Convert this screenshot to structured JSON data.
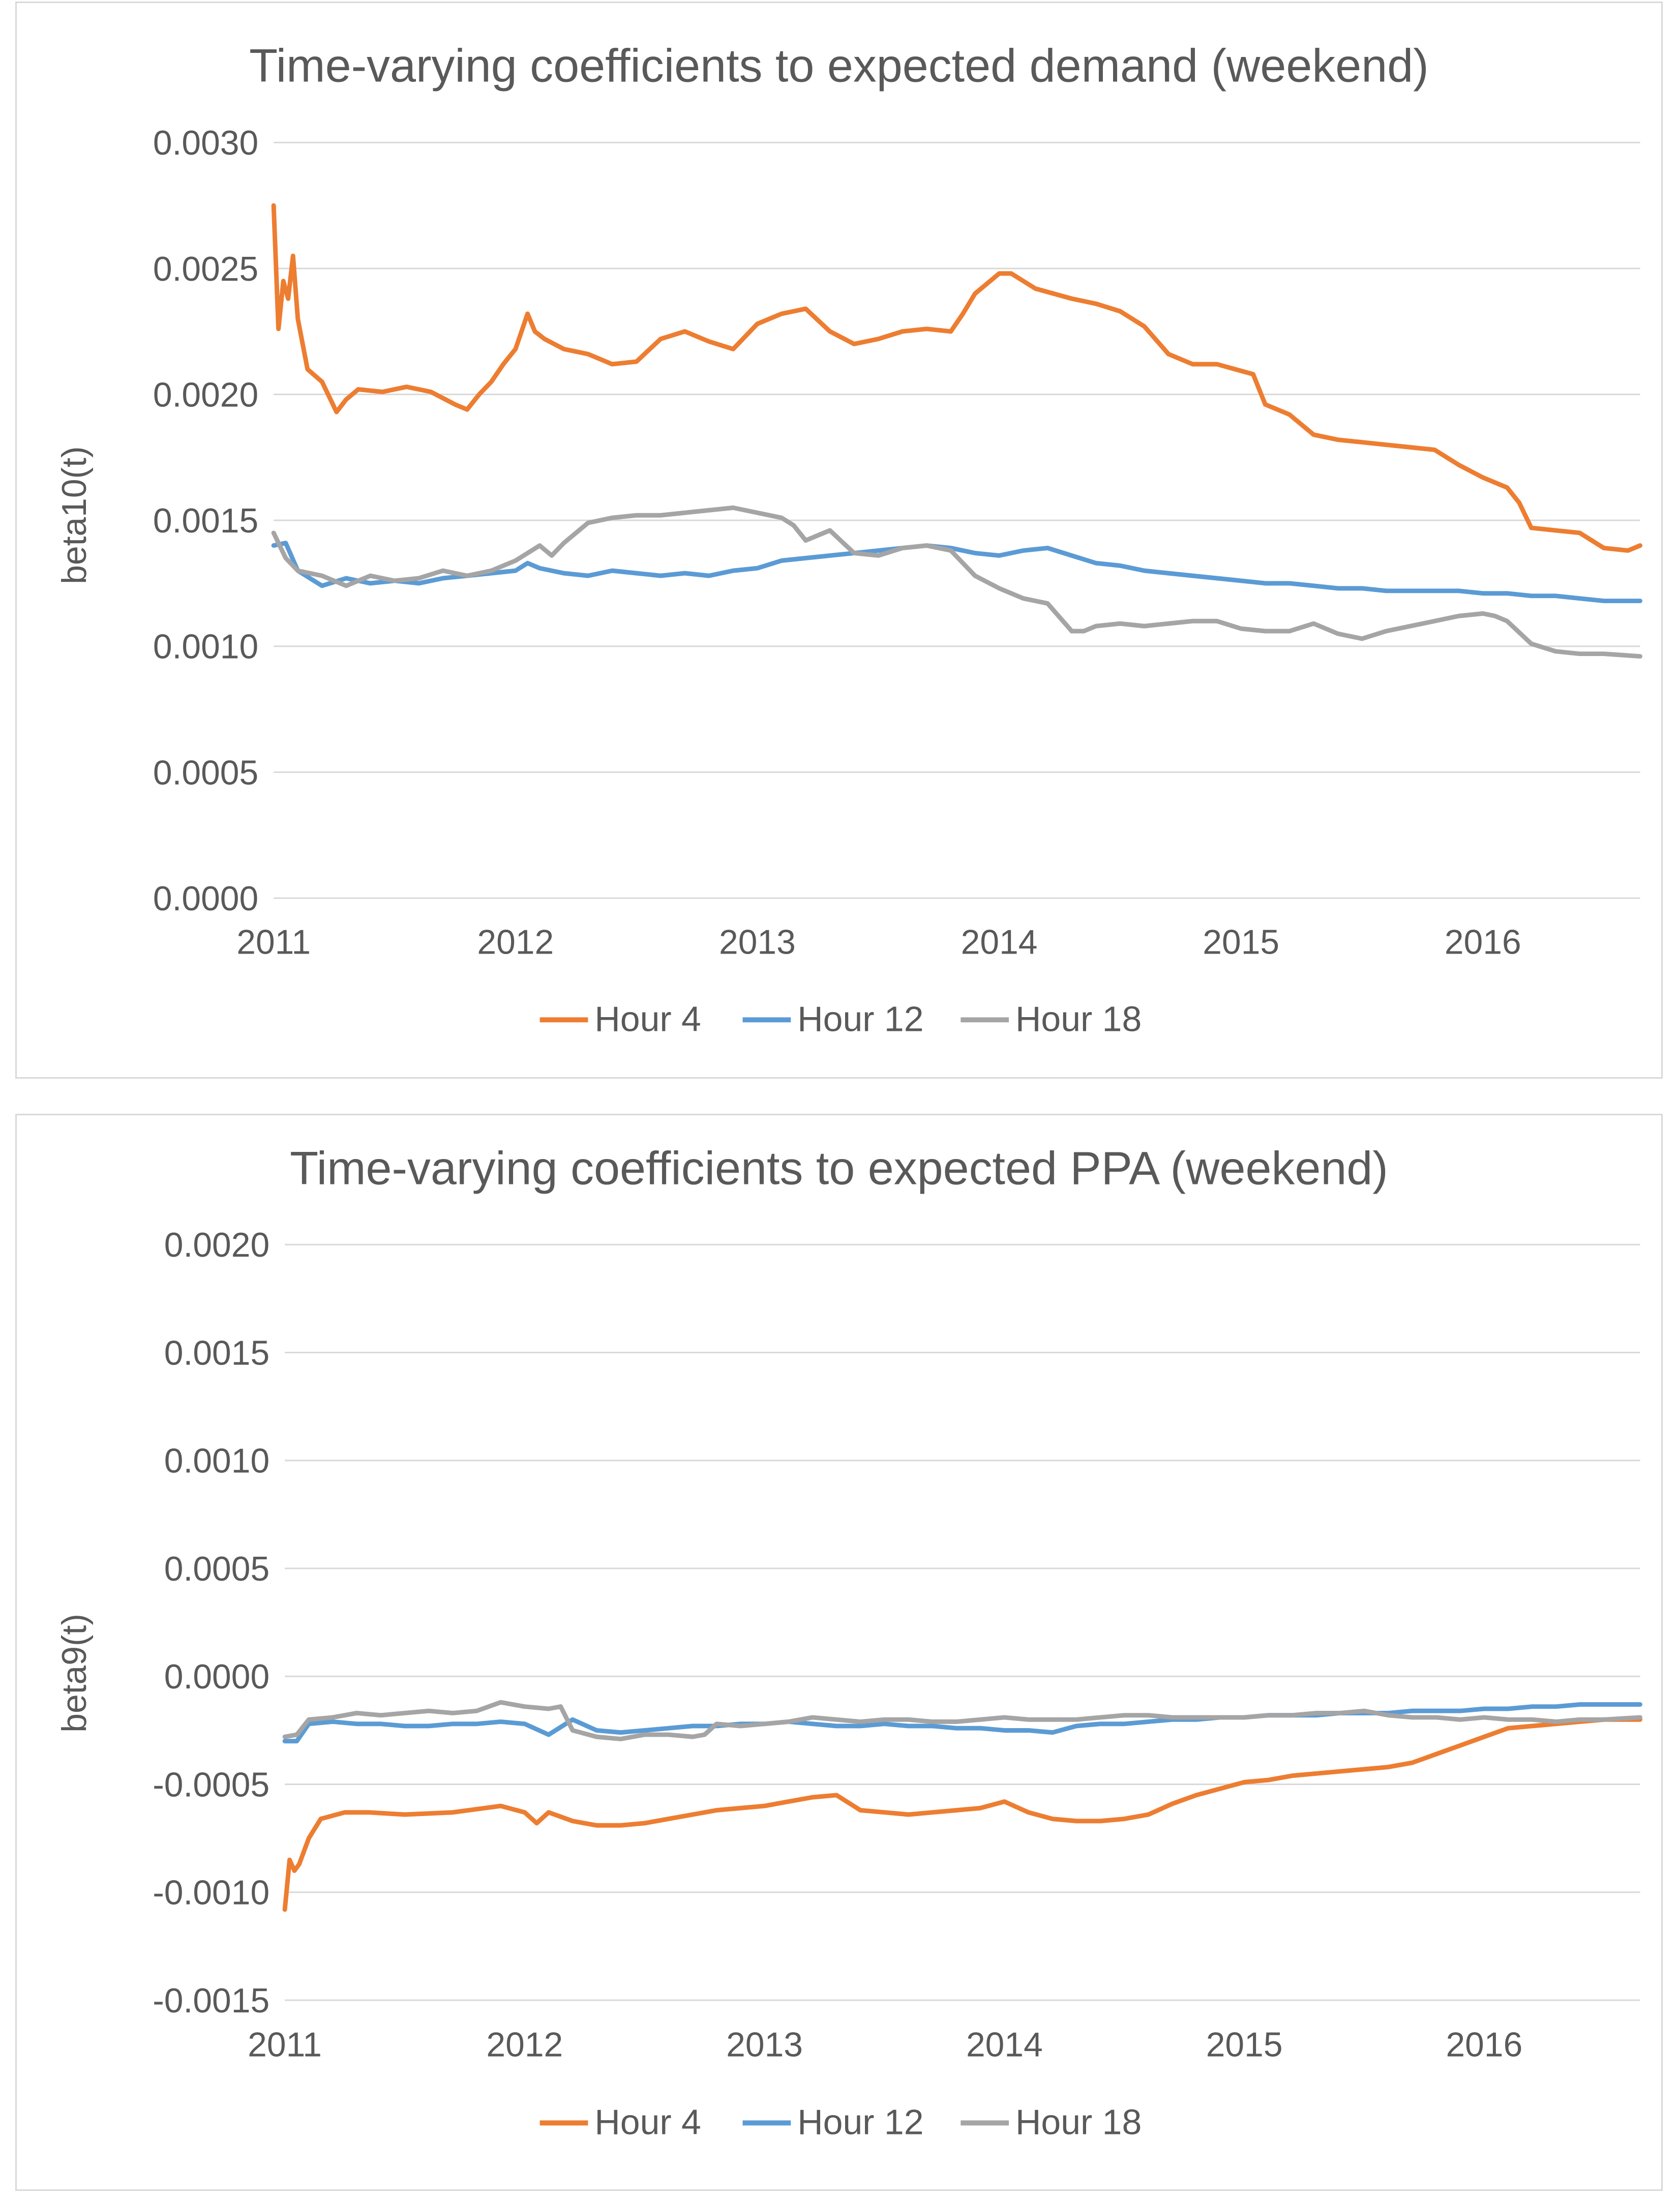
{
  "chart_data": [
    {
      "type": "line",
      "title": "Time-varying coefficients to expected demand (weekend)",
      "xlabel": "",
      "ylabel": "beta10(t)",
      "xlim": [
        2011.0,
        2016.65
      ],
      "ylim": [
        0.0,
        0.003
      ],
      "y_ticks": [
        "0.0000",
        "0.0005",
        "0.0010",
        "0.0015",
        "0.0020",
        "0.0025",
        "0.0030"
      ],
      "x_ticks": [
        "2011",
        "2012",
        "2013",
        "2014",
        "2015",
        "2016"
      ],
      "grid": true,
      "legend": "bottom",
      "series": [
        {
          "name": "Hour 4",
          "color": "#ED7D31",
          "x": [
            2011.0,
            2011.02,
            2011.04,
            2011.06,
            2011.08,
            2011.1,
            2011.14,
            2011.2,
            2011.26,
            2011.3,
            2011.35,
            2011.45,
            2011.55,
            2011.65,
            2011.75,
            2011.8,
            2011.85,
            2011.9,
            2011.95,
            2012.0,
            2012.05,
            2012.08,
            2012.12,
            2012.2,
            2012.3,
            2012.4,
            2012.5,
            2012.6,
            2012.7,
            2012.8,
            2012.9,
            2013.0,
            2013.1,
            2013.2,
            2013.3,
            2013.4,
            2013.5,
            2013.6,
            2013.7,
            2013.8,
            2013.85,
            2013.9,
            2014.0,
            2014.05,
            2014.15,
            2014.3,
            2014.4,
            2014.5,
            2014.6,
            2014.7,
            2014.8,
            2014.9,
            2015.05,
            2015.1,
            2015.2,
            2015.3,
            2015.4,
            2015.5,
            2015.6,
            2015.7,
            2015.8,
            2015.9,
            2016.0,
            2016.1,
            2016.15,
            2016.2,
            2016.3,
            2016.4,
            2016.5,
            2016.6,
            2016.65
          ],
          "values": [
            0.00275,
            0.00226,
            0.00245,
            0.00238,
            0.00255,
            0.0023,
            0.0021,
            0.00205,
            0.00193,
            0.00198,
            0.00202,
            0.00201,
            0.00203,
            0.00201,
            0.00196,
            0.00194,
            0.002,
            0.00205,
            0.00212,
            0.00218,
            0.00232,
            0.00225,
            0.00222,
            0.00218,
            0.00216,
            0.00212,
            0.00213,
            0.00222,
            0.00225,
            0.00221,
            0.00218,
            0.00228,
            0.00232,
            0.00234,
            0.00225,
            0.0022,
            0.00222,
            0.00225,
            0.00226,
            0.00225,
            0.00232,
            0.0024,
            0.00248,
            0.00248,
            0.00242,
            0.00238,
            0.00236,
            0.00233,
            0.00227,
            0.00216,
            0.00212,
            0.00212,
            0.00208,
            0.00196,
            0.00192,
            0.00184,
            0.00182,
            0.00181,
            0.0018,
            0.00179,
            0.00178,
            0.00172,
            0.00167,
            0.00163,
            0.00157,
            0.00147,
            0.00146,
            0.00145,
            0.00139,
            0.00138,
            0.0014
          ]
        },
        {
          "name": "Hour 12",
          "color": "#5B9BD5",
          "x": [
            2011.0,
            2011.05,
            2011.1,
            2011.2,
            2011.3,
            2011.4,
            2011.5,
            2011.6,
            2011.7,
            2011.8,
            2011.9,
            2012.0,
            2012.05,
            2012.1,
            2012.2,
            2012.3,
            2012.4,
            2012.5,
            2012.6,
            2012.7,
            2012.8,
            2012.9,
            2013.0,
            2013.1,
            2013.2,
            2013.3,
            2013.4,
            2013.5,
            2013.6,
            2013.7,
            2013.8,
            2013.9,
            2014.0,
            2014.1,
            2014.2,
            2014.3,
            2014.4,
            2014.5,
            2014.6,
            2014.7,
            2014.8,
            2014.9,
            2015.0,
            2015.1,
            2015.2,
            2015.3,
            2015.4,
            2015.5,
            2015.6,
            2015.7,
            2015.8,
            2015.9,
            2016.0,
            2016.1,
            2016.2,
            2016.3,
            2016.4,
            2016.5,
            2016.65
          ],
          "values": [
            0.0014,
            0.00141,
            0.0013,
            0.00124,
            0.00127,
            0.00125,
            0.00126,
            0.00125,
            0.00127,
            0.00128,
            0.00129,
            0.0013,
            0.00133,
            0.00131,
            0.00129,
            0.00128,
            0.0013,
            0.00129,
            0.00128,
            0.00129,
            0.00128,
            0.0013,
            0.00131,
            0.00134,
            0.00135,
            0.00136,
            0.00137,
            0.00138,
            0.00139,
            0.0014,
            0.00139,
            0.00137,
            0.00136,
            0.00138,
            0.00139,
            0.00136,
            0.00133,
            0.00132,
            0.0013,
            0.00129,
            0.00128,
            0.00127,
            0.00126,
            0.00125,
            0.00125,
            0.00124,
            0.00123,
            0.00123,
            0.00122,
            0.00122,
            0.00122,
            0.00122,
            0.00121,
            0.00121,
            0.0012,
            0.0012,
            0.00119,
            0.00118,
            0.00118
          ]
        },
        {
          "name": "Hour 18",
          "color": "#A5A5A5",
          "x": [
            2011.0,
            2011.05,
            2011.1,
            2011.2,
            2011.3,
            2011.4,
            2011.5,
            2011.6,
            2011.7,
            2011.8,
            2011.9,
            2012.0,
            2012.1,
            2012.15,
            2012.2,
            2012.3,
            2012.4,
            2012.5,
            2012.6,
            2012.7,
            2012.8,
            2012.9,
            2013.0,
            2013.1,
            2013.15,
            2013.2,
            2013.25,
            2013.3,
            2013.4,
            2013.5,
            2013.6,
            2013.7,
            2013.8,
            2013.9,
            2014.0,
            2014.1,
            2014.2,
            2014.3,
            2014.35,
            2014.4,
            2014.5,
            2014.6,
            2014.7,
            2014.8,
            2014.9,
            2015.0,
            2015.1,
            2015.2,
            2015.3,
            2015.4,
            2015.5,
            2015.6,
            2015.7,
            2015.8,
            2015.9,
            2016.0,
            2016.05,
            2016.1,
            2016.2,
            2016.3,
            2016.4,
            2016.5,
            2016.65
          ],
          "values": [
            0.00145,
            0.00135,
            0.0013,
            0.00128,
            0.00124,
            0.00128,
            0.00126,
            0.00127,
            0.0013,
            0.00128,
            0.0013,
            0.00134,
            0.0014,
            0.00136,
            0.00141,
            0.00149,
            0.00151,
            0.00152,
            0.00152,
            0.00153,
            0.00154,
            0.00155,
            0.00153,
            0.00151,
            0.00148,
            0.00142,
            0.00144,
            0.00146,
            0.00137,
            0.00136,
            0.00139,
            0.0014,
            0.00138,
            0.00128,
            0.00123,
            0.00119,
            0.00117,
            0.00106,
            0.00106,
            0.00108,
            0.00109,
            0.00108,
            0.00109,
            0.0011,
            0.0011,
            0.00107,
            0.00106,
            0.00106,
            0.00109,
            0.00105,
            0.00103,
            0.00106,
            0.00108,
            0.0011,
            0.00112,
            0.00113,
            0.00112,
            0.0011,
            0.00101,
            0.00098,
            0.00097,
            0.00097,
            0.00096
          ]
        }
      ]
    },
    {
      "type": "line",
      "title": "Time-varying coefficients to expected PPA (weekend)",
      "xlabel": "",
      "ylabel": "beta9(t)",
      "xlim": [
        2011.0,
        2016.65
      ],
      "ylim": [
        -0.0015,
        0.002
      ],
      "y_ticks": [
        "-0.0015",
        "-0.0010",
        "-0.0005",
        "0.0000",
        "0.0005",
        "0.0010",
        "0.0015",
        "0.0020"
      ],
      "x_ticks": [
        "2011",
        "2012",
        "2013",
        "2014",
        "2015",
        "2016"
      ],
      "grid": true,
      "legend": "bottom",
      "series": [
        {
          "name": "Hour 4",
          "color": "#ED7D31",
          "x": [
            2011.0,
            2011.02,
            2011.04,
            2011.06,
            2011.1,
            2011.15,
            2011.25,
            2011.35,
            2011.5,
            2011.7,
            2011.9,
            2012.0,
            2012.05,
            2012.1,
            2012.2,
            2012.3,
            2012.4,
            2012.5,
            2012.6,
            2012.7,
            2012.8,
            2012.9,
            2013.0,
            2013.1,
            2013.2,
            2013.3,
            2013.4,
            2013.5,
            2013.6,
            2013.7,
            2013.8,
            2013.9,
            2014.0,
            2014.1,
            2014.2,
            2014.3,
            2014.4,
            2014.5,
            2014.6,
            2014.7,
            2014.8,
            2014.9,
            2015.0,
            2015.1,
            2015.2,
            2015.3,
            2015.4,
            2015.5,
            2015.6,
            2015.7,
            2015.8,
            2015.9,
            2016.0,
            2016.1,
            2016.2,
            2016.3,
            2016.4,
            2016.5,
            2016.65
          ],
          "values": [
            -0.00108,
            -0.00085,
            -0.0009,
            -0.00087,
            -0.00075,
            -0.00066,
            -0.00063,
            -0.00063,
            -0.00064,
            -0.00063,
            -0.0006,
            -0.00063,
            -0.00068,
            -0.00063,
            -0.00067,
            -0.00069,
            -0.00069,
            -0.00068,
            -0.00066,
            -0.00064,
            -0.00062,
            -0.00061,
            -0.0006,
            -0.00058,
            -0.00056,
            -0.00055,
            -0.00062,
            -0.00063,
            -0.00064,
            -0.00063,
            -0.00062,
            -0.00061,
            -0.00058,
            -0.00063,
            -0.00066,
            -0.00067,
            -0.00067,
            -0.00066,
            -0.00064,
            -0.00059,
            -0.00055,
            -0.00052,
            -0.00049,
            -0.00048,
            -0.00046,
            -0.00045,
            -0.00044,
            -0.00043,
            -0.00042,
            -0.0004,
            -0.00036,
            -0.00032,
            -0.00028,
            -0.00024,
            -0.00023,
            -0.00022,
            -0.00021,
            -0.0002,
            -0.0002
          ]
        },
        {
          "name": "Hour 12",
          "color": "#5B9BD5",
          "x": [
            2011.0,
            2011.05,
            2011.1,
            2011.2,
            2011.3,
            2011.4,
            2011.5,
            2011.6,
            2011.7,
            2011.8,
            2011.9,
            2012.0,
            2012.1,
            2012.2,
            2012.3,
            2012.4,
            2012.5,
            2012.6,
            2012.7,
            2012.8,
            2012.9,
            2013.0,
            2013.1,
            2013.2,
            2013.3,
            2013.4,
            2013.5,
            2013.6,
            2013.7,
            2013.8,
            2013.9,
            2014.0,
            2014.1,
            2014.2,
            2014.3,
            2014.4,
            2014.5,
            2014.6,
            2014.7,
            2014.8,
            2014.9,
            2015.0,
            2015.1,
            2015.2,
            2015.3,
            2015.4,
            2015.5,
            2015.6,
            2015.7,
            2015.8,
            2015.9,
            2016.0,
            2016.1,
            2016.2,
            2016.3,
            2016.4,
            2016.5,
            2016.65
          ],
          "values": [
            -0.0003,
            -0.0003,
            -0.00022,
            -0.00021,
            -0.00022,
            -0.00022,
            -0.00023,
            -0.00023,
            -0.00022,
            -0.00022,
            -0.00021,
            -0.00022,
            -0.00027,
            -0.0002,
            -0.00025,
            -0.00026,
            -0.00025,
            -0.00024,
            -0.00023,
            -0.00023,
            -0.00022,
            -0.00022,
            -0.00021,
            -0.00022,
            -0.00023,
            -0.00023,
            -0.00022,
            -0.00023,
            -0.00023,
            -0.00024,
            -0.00024,
            -0.00025,
            -0.00025,
            -0.00026,
            -0.00023,
            -0.00022,
            -0.00022,
            -0.00021,
            -0.0002,
            -0.0002,
            -0.00019,
            -0.00019,
            -0.00018,
            -0.00018,
            -0.00018,
            -0.00017,
            -0.00017,
            -0.00017,
            -0.00016,
            -0.00016,
            -0.00016,
            -0.00015,
            -0.00015,
            -0.00014,
            -0.00014,
            -0.00013,
            -0.00013,
            -0.00013
          ]
        },
        {
          "name": "Hour 18",
          "color": "#A5A5A5",
          "x": [
            2011.0,
            2011.05,
            2011.1,
            2011.2,
            2011.3,
            2011.4,
            2011.5,
            2011.6,
            2011.7,
            2011.8,
            2011.9,
            2012.0,
            2012.1,
            2012.15,
            2012.2,
            2012.3,
            2012.4,
            2012.5,
            2012.6,
            2012.7,
            2012.75,
            2012.8,
            2012.9,
            2013.0,
            2013.1,
            2013.2,
            2013.3,
            2013.4,
            2013.5,
            2013.6,
            2013.7,
            2013.8,
            2013.9,
            2014.0,
            2014.1,
            2014.2,
            2014.3,
            2014.4,
            2014.5,
            2014.6,
            2014.7,
            2014.8,
            2014.9,
            2015.0,
            2015.1,
            2015.2,
            2015.3,
            2015.4,
            2015.5,
            2015.6,
            2015.7,
            2015.8,
            2015.9,
            2016.0,
            2016.1,
            2016.2,
            2016.3,
            2016.4,
            2016.5,
            2016.65
          ],
          "values": [
            -0.00028,
            -0.00027,
            -0.0002,
            -0.00019,
            -0.00017,
            -0.00018,
            -0.00017,
            -0.00016,
            -0.00017,
            -0.00016,
            -0.00012,
            -0.00014,
            -0.00015,
            -0.00014,
            -0.00025,
            -0.00028,
            -0.00029,
            -0.00027,
            -0.00027,
            -0.00028,
            -0.00027,
            -0.00022,
            -0.00023,
            -0.00022,
            -0.00021,
            -0.00019,
            -0.0002,
            -0.00021,
            -0.0002,
            -0.0002,
            -0.00021,
            -0.00021,
            -0.0002,
            -0.00019,
            -0.0002,
            -0.0002,
            -0.0002,
            -0.00019,
            -0.00018,
            -0.00018,
            -0.00019,
            -0.00019,
            -0.00019,
            -0.00019,
            -0.00018,
            -0.00018,
            -0.00017,
            -0.00017,
            -0.00016,
            -0.00018,
            -0.00019,
            -0.00019,
            -0.0002,
            -0.00019,
            -0.0002,
            -0.0002,
            -0.00021,
            -0.0002,
            -0.0002,
            -0.00019
          ]
        }
      ]
    }
  ]
}
